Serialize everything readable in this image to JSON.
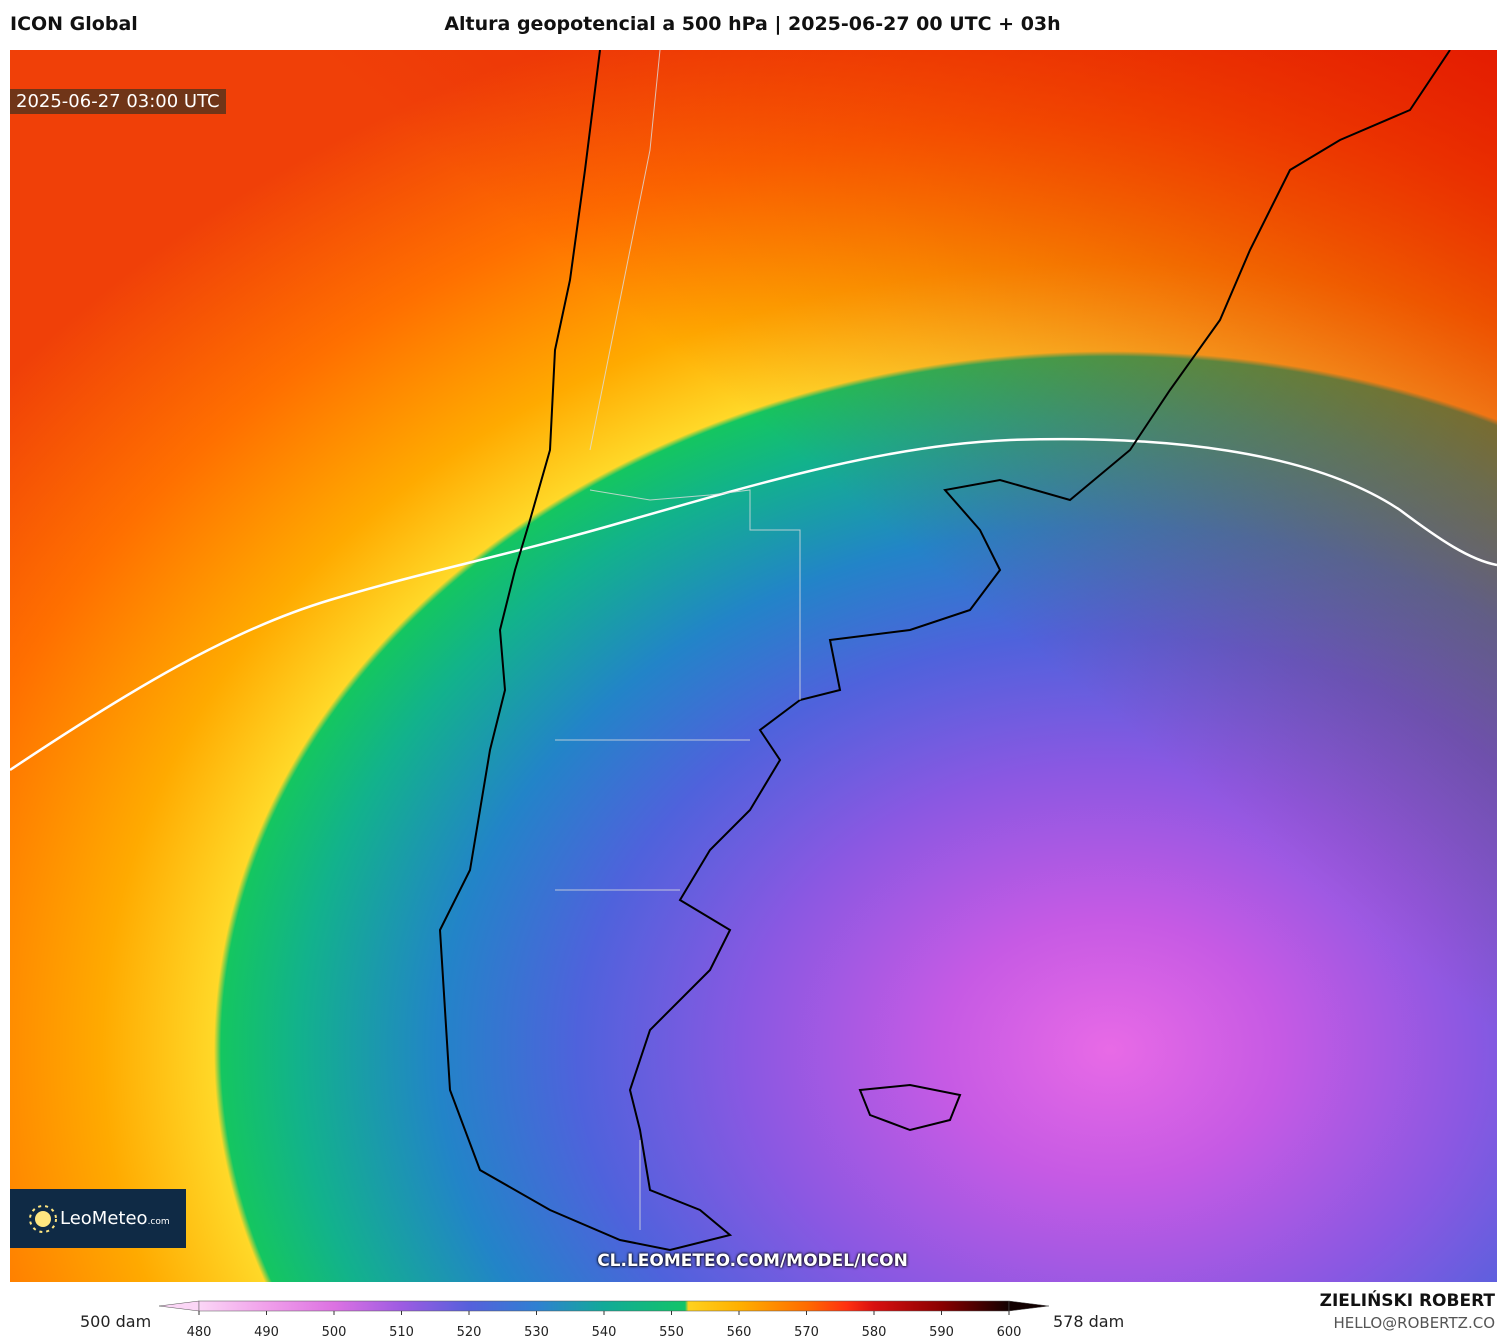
{
  "header": {
    "source": "ICON Global",
    "title": "Altura geopotencial a 500 hPa | 2025-06-27 00 UTC + 03h"
  },
  "map": {
    "valid_time": "2025-06-27 03:00 UTC",
    "logo": "LeoMeteo",
    "logo_suffix": ".com",
    "url": "CL.LEOMETEO.COM/MODEL/ICON"
  },
  "colorbar": {
    "min_label": "500 dam",
    "max_label": "578 dam",
    "ticks": [
      480,
      490,
      500,
      510,
      520,
      530,
      540,
      550,
      560,
      570,
      580,
      590,
      600
    ],
    "stops": [
      [
        480,
        "#fbd6f6"
      ],
      [
        490,
        "#f0a0ea"
      ],
      [
        500,
        "#dc72e2"
      ],
      [
        510,
        "#9d5ce2"
      ],
      [
        520,
        "#5660dc"
      ],
      [
        530,
        "#2f80d2"
      ],
      [
        540,
        "#12aa98"
      ],
      [
        552,
        "#12c468"
      ],
      [
        552.5,
        "#ffd21e"
      ],
      [
        560,
        "#ffb000"
      ],
      [
        570,
        "#ff6c00"
      ],
      [
        576,
        "#ff3010"
      ],
      [
        580,
        "#d81010"
      ],
      [
        590,
        "#8a0000"
      ],
      [
        600,
        "#120000"
      ]
    ]
  },
  "footer": {
    "author": "ZIELIŃSKI ROBERT",
    "email": "HELLO@ROBERTZ.CO"
  }
}
